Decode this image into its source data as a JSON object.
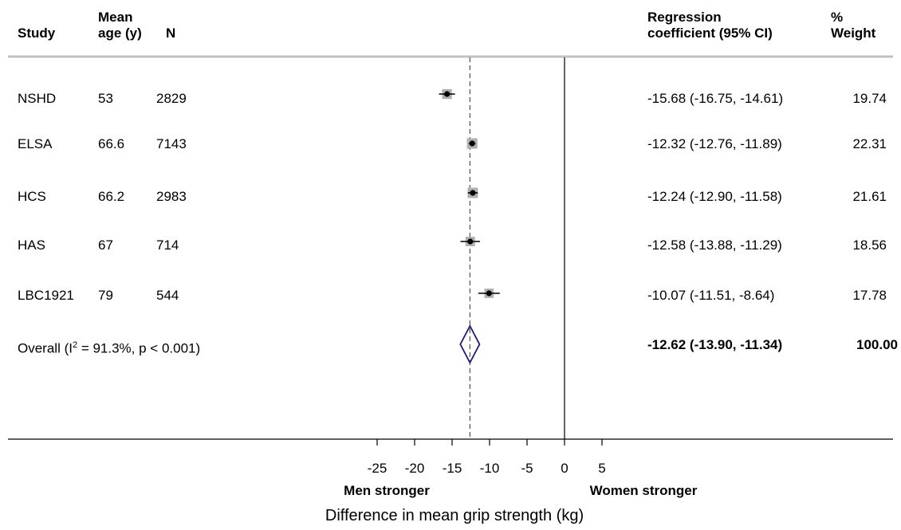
{
  "header": {
    "study": "Study",
    "mean_age": [
      "Mean",
      "age (y)"
    ],
    "n": "N",
    "coef": [
      "Regression",
      "coefficient (95% CI)"
    ],
    "weight": [
      "%",
      "Weight"
    ]
  },
  "rows": [
    {
      "study": "NSHD",
      "age": "53",
      "n": "2829",
      "ci_text": "-15.68 (-16.75, -14.61)",
      "weight": "19.74"
    },
    {
      "study": "ELSA",
      "age": "66.6",
      "n": "7143",
      "ci_text": "-12.32 (-12.76, -11.89)",
      "weight": "22.31"
    },
    {
      "study": "HCS",
      "age": "66.2",
      "n": "2983",
      "ci_text": "-12.24 (-12.90, -11.58)",
      "weight": "21.61"
    },
    {
      "study": "HAS",
      "age": "67",
      "n": "714",
      "ci_text": "-12.58 (-13.88, -11.29)",
      "weight": "18.56"
    },
    {
      "study": "LBC1921",
      "age": "79",
      "n": "544",
      "ci_text": "-10.07 (-11.51, -8.64)",
      "weight": "17.78"
    }
  ],
  "overall": {
    "label_pre": "Overall  (I",
    "label_sup": "2",
    "label_post": " = 91.3%, p < 0.001)",
    "ci_text": "-12.62 (-13.90, -11.34)",
    "weight": "100.00"
  },
  "chart_data": {
    "type": "forest",
    "xlabel": "Difference in mean grip strength (kg)",
    "left_note": "Men stronger",
    "right_note": "Women stronger",
    "ticks": [
      "-25",
      "-20",
      "-15",
      "-10",
      "-5",
      "0",
      "5"
    ],
    "tick_values": [
      -25,
      -20,
      -15,
      -10,
      -5,
      0,
      5
    ],
    "null_line": 0,
    "series": [
      {
        "study": "NSHD",
        "estimate": -15.68,
        "lower": -16.75,
        "upper": -14.61,
        "weight": 19.74
      },
      {
        "study": "ELSA",
        "estimate": -12.32,
        "lower": -12.76,
        "upper": -11.89,
        "weight": 22.31
      },
      {
        "study": "HCS",
        "estimate": -12.24,
        "lower": -12.9,
        "upper": -11.58,
        "weight": 21.61
      },
      {
        "study": "HAS",
        "estimate": -12.58,
        "lower": -13.88,
        "upper": -11.29,
        "weight": 18.56
      },
      {
        "study": "LBC1921",
        "estimate": -10.07,
        "lower": -11.51,
        "upper": -8.64,
        "weight": 17.78
      }
    ],
    "overall": {
      "estimate": -12.62,
      "lower": -13.9,
      "upper": -11.34
    },
    "colors": {
      "ci_line": "#000000",
      "weight_box": "#b0b0b0",
      "diamond": "#1a1f6e",
      "overall_line": "#8b3a3a",
      "separator": "#c0c0c0"
    }
  }
}
